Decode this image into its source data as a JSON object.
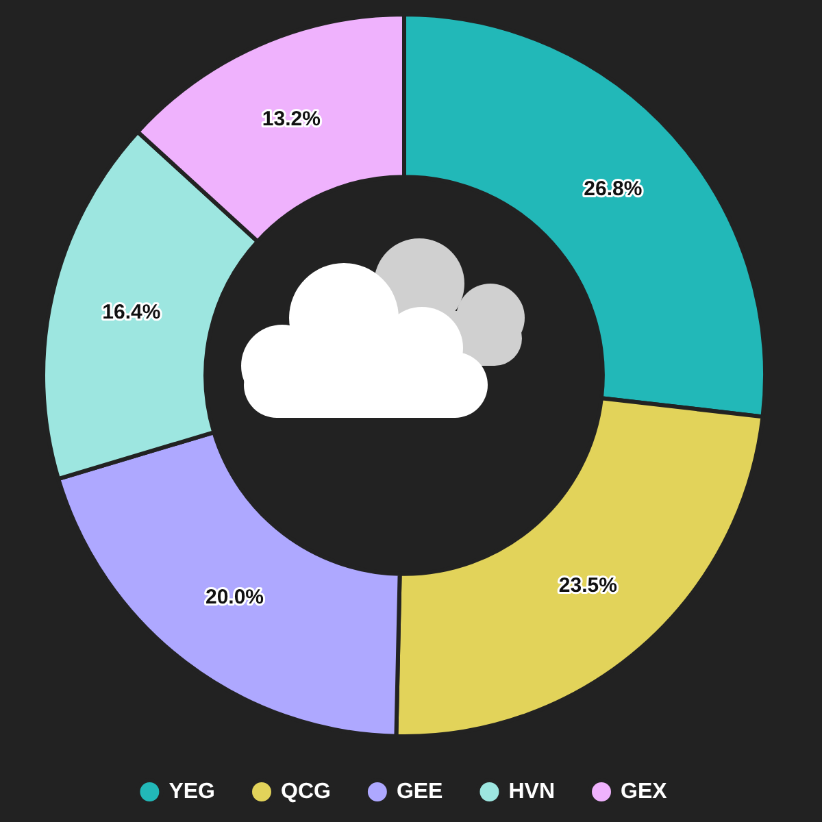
{
  "chart_data": {
    "type": "donut",
    "categories": [
      "YEG",
      "QCG",
      "GEE",
      "HVN",
      "GEX"
    ],
    "values": [
      26.8,
      23.5,
      20.0,
      16.4,
      13.2
    ],
    "colors": [
      "#22b8b8",
      "#e2d35a",
      "#aea8ff",
      "#9de6e0",
      "#efb2fd"
    ],
    "value_labels": [
      "26.8%",
      "23.5%",
      "20.0%",
      "16.4%",
      "13.2%"
    ],
    "legend": "bottom"
  }
}
